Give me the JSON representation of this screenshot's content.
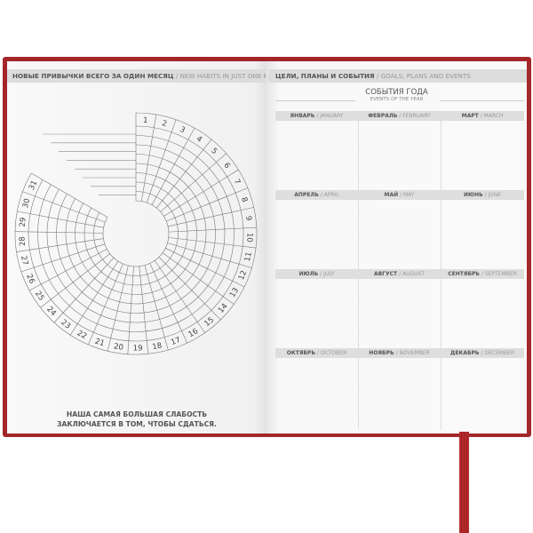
{
  "left_page": {
    "header_ru": "НОВЫЕ ПРИВЫЧКИ ВСЕГО ЗА ОДИН МЕСЯЦ",
    "header_en": "/ NEW HABITS IN JUST ONE MONTH",
    "days": [
      "1",
      "2",
      "3",
      "4",
      "5",
      "6",
      "7",
      "8",
      "9",
      "10",
      "11",
      "12",
      "13",
      "14",
      "15",
      "16",
      "17",
      "18",
      "19",
      "20",
      "21",
      "22",
      "23",
      "24",
      "25",
      "26",
      "27",
      "28",
      "29",
      "30",
      "31"
    ],
    "quote_line1": "НАША САМАЯ БОЛЬШАЯ СЛАБОСТЬ",
    "quote_line2": "ЗАКЛЮЧАЕТСЯ В ТОМ, ЧТОБЫ СДАТЬСЯ."
  },
  "right_page": {
    "header_ru": "ЦЕЛИ, ПЛАНЫ И СОБЫТИЯ",
    "header_en": "/ GOALS, PLANS AND EVENTS",
    "title_ru": "СОБЫТИЯ ГОДА",
    "title_en": "EVENTS OF THE YEAR",
    "months": [
      {
        "ru": "ЯНВАРЬ",
        "en": "/ JANUARY"
      },
      {
        "ru": "ФЕВРАЛЬ",
        "en": "/ FEBRUARY"
      },
      {
        "ru": "МАРТ",
        "en": "/ MARCH"
      },
      {
        "ru": "АПРЕЛЬ",
        "en": "/ APRIL"
      },
      {
        "ru": "МАЙ",
        "en": "/ MAY"
      },
      {
        "ru": "ИЮНЬ",
        "en": "/ JUNE"
      },
      {
        "ru": "ИЮЛЬ",
        "en": "/ JULY"
      },
      {
        "ru": "АВГУСТ",
        "en": "/ AUGUST"
      },
      {
        "ru": "СЕНТЯБРЬ",
        "en": "/ SEPTEMBER"
      },
      {
        "ru": "ОКТЯБРЬ",
        "en": "/ OCTOBER"
      },
      {
        "ru": "НОЯБРЬ",
        "en": "/ NOVEMBER"
      },
      {
        "ru": "ДЕКАБРЬ",
        "en": "/ DECEMBER"
      }
    ]
  },
  "colors": {
    "cover": "#a3262a",
    "ribbon": "#b52a2e",
    "header_bar": "#dcdcdc"
  }
}
